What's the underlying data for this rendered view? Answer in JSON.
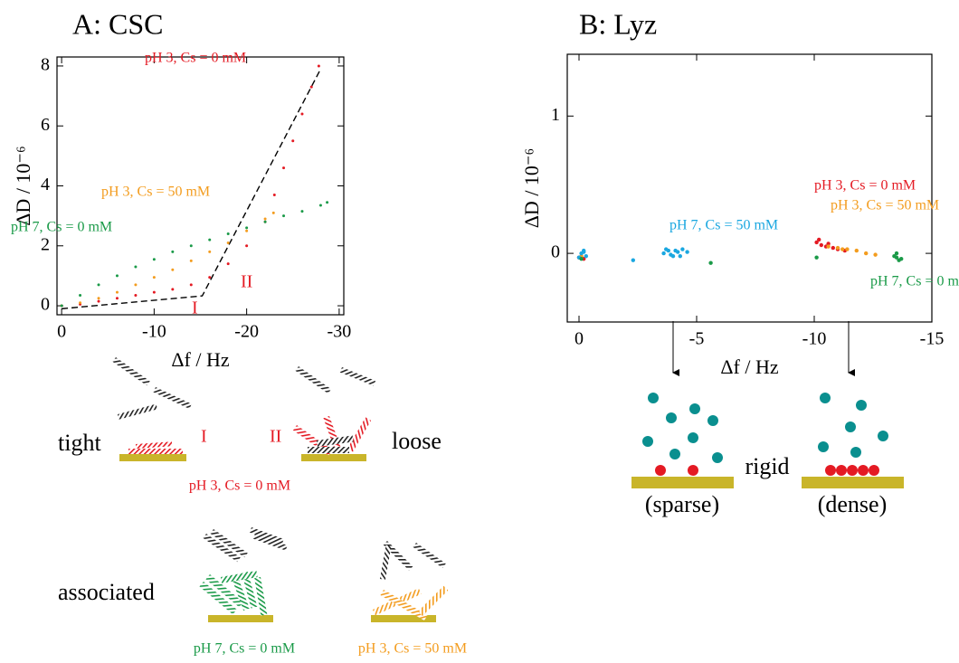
{
  "chart_data": [
    {
      "type": "scatter",
      "title": "A: CSC",
      "xlabel": "Δf / Hz",
      "ylabel": "ΔD / 10⁻⁶",
      "xlim": [
        0.5,
        -30.5
      ],
      "xticks": [
        0,
        -10,
        -20,
        -30
      ],
      "ylim": [
        -0.3,
        8.3
      ],
      "yticks": [
        0,
        2,
        4,
        6,
        8
      ],
      "annotations": [
        "I",
        "II"
      ],
      "fit_line": {
        "color": "#000000",
        "x": [
          0,
          -15.2,
          -28
        ],
        "y": [
          -0.1,
          0.33,
          7.9
        ]
      },
      "series": [
        {
          "name": "pH 3, Cs = 0 mM",
          "color": "#e41a23",
          "x": [
            0,
            -2,
            -4,
            -6,
            -8,
            -10,
            -12,
            -14,
            -16,
            -18,
            -20,
            -22,
            -23,
            -24,
            -25,
            -26,
            -27,
            -27.8
          ],
          "values": [
            0,
            0.05,
            0.15,
            0.25,
            0.35,
            0.45,
            0.55,
            0.7,
            0.95,
            1.4,
            2.0,
            2.8,
            3.7,
            4.6,
            5.5,
            6.4,
            7.3,
            8.0
          ]
        },
        {
          "name": "pH 3, Cs = 50 mM",
          "color": "#f39c1e",
          "x": [
            0,
            -2,
            -4,
            -6,
            -8,
            -10,
            -12,
            -14,
            -16,
            -18,
            -20,
            -22,
            -22.9
          ],
          "values": [
            0,
            0.1,
            0.25,
            0.45,
            0.7,
            0.95,
            1.2,
            1.5,
            1.8,
            2.1,
            2.5,
            2.9,
            3.1
          ]
        },
        {
          "name": "pH 7, Cs = 0 mM",
          "color": "#1a9a48",
          "x": [
            0,
            -2,
            -4,
            -6,
            -8,
            -10,
            -12,
            -14,
            -16,
            -18,
            -20,
            -22,
            -24,
            -26,
            -28,
            -28.7
          ],
          "values": [
            0,
            0.35,
            0.7,
            1.0,
            1.3,
            1.55,
            1.8,
            2.0,
            2.2,
            2.4,
            2.6,
            2.8,
            3.0,
            3.15,
            3.35,
            3.45
          ]
        }
      ]
    },
    {
      "type": "scatter",
      "title": "B: Lyz",
      "xlabel": "Δf / Hz",
      "ylabel": "ΔD / 10⁻⁶",
      "xlim": [
        0.5,
        -15
      ],
      "xticks": [
        0,
        -5,
        -10,
        -15
      ],
      "ylim": [
        -0.5,
        1.45
      ],
      "yticks": [
        0,
        1
      ],
      "series": [
        {
          "name": "pH 3, Cs = 0 mM",
          "color": "#e41a23",
          "x": [
            -10.1,
            -10.3,
            -10.5,
            -10.8,
            -11.0,
            -11.3,
            -10.2,
            -10.6,
            0,
            -0.2
          ],
          "values": [
            0.08,
            0.06,
            0.05,
            0.04,
            0.03,
            0.02,
            0.1,
            0.07,
            -0.03,
            -0.04
          ]
        },
        {
          "name": "pH 3, Cs = 50 mM",
          "color": "#f39c1e",
          "x": [
            -10.6,
            -11.0,
            -11.4,
            -11.8,
            -12.2,
            -12.6,
            -11.2,
            -0.1
          ],
          "values": [
            0.05,
            0.04,
            0.03,
            0.02,
            0.0,
            -0.01,
            0.03,
            -0.02
          ]
        },
        {
          "name": "pH 7, Cs = 50 mM",
          "color": "#1aa7e0",
          "x": [
            -0.1,
            -0.2,
            -0.3,
            0,
            -0.2,
            -3.6,
            -3.8,
            -4.0,
            -4.2,
            -4.4,
            -3.9,
            -4.1,
            -4.3,
            -4.6,
            -3.7,
            -2.3
          ],
          "values": [
            0,
            0.02,
            -0.02,
            -0.03,
            0.01,
            0,
            0.02,
            -0.02,
            0.01,
            0.03,
            -0.01,
            0.02,
            -0.02,
            0.01,
            0.03,
            -0.05
          ]
        },
        {
          "name": "pH 7, Cs = 0 mM",
          "color": "#1a9a48",
          "x": [
            -13.4,
            -13.5,
            -13.6,
            -13.7,
            -13.5,
            -10.1,
            -5.6,
            -0.1
          ],
          "values": [
            -0.02,
            -0.03,
            -0.05,
            -0.04,
            0,
            -0.03,
            -0.07,
            -0.04
          ]
        }
      ]
    }
  ],
  "schematic": {
    "tight": "tight",
    "stage_I": "I",
    "stage_II": "II",
    "loose": "loose",
    "red_condition": "pH 3, Cs = 0 mM",
    "associated": "associated",
    "green_condition": "pH 7, Cs = 0 mM",
    "orange_condition": "pH 3, Cs = 50 mM",
    "rigid": "rigid",
    "sparse": "(sparse)",
    "dense": "(dense)"
  }
}
